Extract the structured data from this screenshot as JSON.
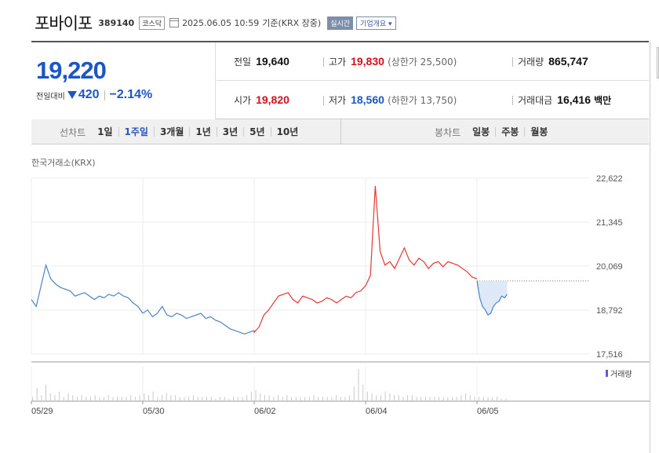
{
  "header": {
    "name": "포바이포",
    "code": "389140",
    "market_badge": "코스닥",
    "timestamp": "2025.06.05 10:59",
    "basis": "기준(KRX 장중)",
    "realtime_label": "실시간",
    "company_label": "기업개요 ▾"
  },
  "price": {
    "current": "19,220",
    "change_label": "전일대비",
    "change_amount": "420",
    "change_percent": "−2.14%",
    "direction": "down"
  },
  "stats": {
    "prev_close_label": "전일",
    "prev_close": "19,640",
    "high_label": "고가",
    "high": "19,830",
    "upper_limit": "(상한가 25,500)",
    "volume_label": "거래량",
    "volume": "865,747",
    "open_label": "시가",
    "open": "19,820",
    "low_label": "저가",
    "low": "18,560",
    "lower_limit": "(하한가 13,750)",
    "amount_label": "거래대금",
    "amount": "16,416",
    "amount_unit": "백만"
  },
  "period": {
    "title": "선차트",
    "items": [
      "1일",
      "1주일",
      "3개월",
      "1년",
      "3년",
      "5년",
      "10년"
    ],
    "active": "1주일"
  },
  "candle": {
    "title": "봉차트",
    "items": [
      "일봉",
      "주봉",
      "월봉"
    ]
  },
  "chart_source": "한국거래소(KRX)",
  "colors": {
    "up": "#e53935",
    "down": "#4a86c8",
    "accent": "#1b57c4",
    "fill": "#dde9f7"
  },
  "chart_data": {
    "type": "line",
    "title": "",
    "xlabel": "",
    "ylabel": "",
    "x_ticks": [
      "05/29",
      "05/30",
      "06/02",
      "06/04",
      "06/05"
    ],
    "y_ticks": [
      "22,622",
      "21,345",
      "20,069",
      "18,792",
      "17,516"
    ],
    "ylim": [
      17516,
      22622
    ],
    "reference_prev_close": 19640,
    "volume_legend": "거래량",
    "series": [
      {
        "day": "05/29",
        "color": "blue",
        "values": [
          19100,
          18900,
          19500,
          20100,
          19700,
          19550,
          19450,
          19400,
          19350,
          19200,
          19250,
          19300,
          19200,
          19100,
          19200,
          19150,
          19250,
          19200,
          19300,
          19200,
          19150,
          19000,
          18900,
          18700
        ]
      },
      {
        "day": "05/30",
        "color": "blue",
        "values": [
          18700,
          18800,
          18600,
          18700,
          18900,
          18650,
          18600,
          18700,
          18650,
          18550,
          18600,
          18650,
          18700,
          18550,
          18600,
          18500,
          18450,
          18350,
          18250,
          18200,
          18150,
          18100,
          18150,
          18200
        ]
      },
      {
        "day": "06/02",
        "color": "red",
        "values": [
          18150,
          18300,
          18650,
          18800,
          19000,
          19200,
          19250,
          19300,
          19100,
          19000,
          19200,
          19150,
          19100,
          19000,
          19050,
          19150,
          19100,
          19000,
          19100,
          19200,
          19150,
          19300,
          19350,
          19500
        ]
      },
      {
        "day": "06/04",
        "color": "red",
        "values": [
          19500,
          19800,
          22400,
          20500,
          20100,
          20200,
          20000,
          20300,
          20600,
          20250,
          20100,
          20300,
          20200,
          20000,
          20150,
          20200,
          20050,
          20200,
          20150,
          20100,
          20000,
          19900,
          19750,
          19700
        ]
      },
      {
        "day": "06/05",
        "color": "blue",
        "values": [
          19650,
          19150,
          18900,
          18800,
          18650,
          18700,
          18900,
          19000,
          19050,
          19200,
          19150,
          19250
        ]
      }
    ],
    "volume": [
      2,
      7,
      3,
      9,
      4,
      3,
      5,
      2,
      4,
      3,
      2,
      3,
      2,
      2,
      3,
      2,
      2,
      3,
      2,
      2,
      2,
      2,
      3,
      2,
      3,
      4,
      3,
      5,
      2,
      3,
      4,
      3,
      3,
      2,
      2,
      2,
      3,
      2,
      2,
      2,
      2,
      1,
      2,
      2,
      1,
      2,
      2,
      2,
      3,
      5,
      6,
      4,
      3,
      3,
      2,
      3,
      2,
      3,
      2,
      2,
      2,
      2,
      2,
      3,
      2,
      2,
      2,
      2,
      3,
      2,
      2,
      3,
      8,
      18,
      9,
      5,
      4,
      3,
      3,
      5,
      4,
      3,
      3,
      2,
      3,
      3,
      2,
      2,
      2,
      2,
      2,
      2,
      2,
      2,
      2,
      2,
      3,
      4,
      3,
      2,
      2,
      2,
      2,
      2,
      2,
      1,
      1
    ]
  }
}
